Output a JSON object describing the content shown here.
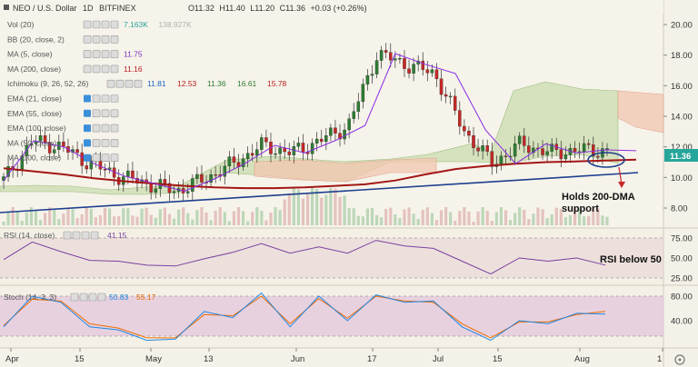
{
  "header": {
    "symbol": "NEO / U.S. Dollar",
    "interval": "1D",
    "exchange": "BITFINEX",
    "ohlc": {
      "o_label": "O",
      "o": "11.32",
      "h_label": "H",
      "h": "11.40",
      "l_label": "L",
      "l": "11.20",
      "c_label": "C",
      "c": "11.36"
    },
    "change": "+0.03 (+0.26%)"
  },
  "indicators": [
    {
      "label": "Vol (20)",
      "values": [
        "7.163K",
        "138.927K"
      ],
      "colors": [
        "#26a69a",
        "#b0b0b0"
      ]
    },
    {
      "label": "BB (20, close, 2)",
      "values": [],
      "colors": []
    },
    {
      "label": "MA (5, close)",
      "values": [
        "11.75"
      ],
      "colors": [
        "#7b2fbf"
      ]
    },
    {
      "label": "MA (200, close)",
      "values": [
        "11.16"
      ],
      "colors": [
        "#b71c1c"
      ]
    },
    {
      "label": "Ichimoku (9, 26, 52, 26)",
      "values": [
        "11.81",
        "12.53",
        "11.36",
        "16.61",
        "15.78"
      ],
      "colors": [
        "#1565c0",
        "#b71c1c",
        "#2e7d32",
        "#2e7d32",
        "#b71c1c"
      ]
    },
    {
      "label": "EMA (21, close)",
      "values": [],
      "colors": []
    },
    {
      "label": "EMA (55, close)",
      "values": [],
      "colors": []
    },
    {
      "label": "EMA (100, close)",
      "values": [],
      "colors": []
    },
    {
      "label": "MA (50, close)",
      "values": [],
      "colors": []
    },
    {
      "label": "MA (100, close)",
      "values": [],
      "colors": []
    }
  ],
  "price_axis": {
    "ticks": [
      "20.00",
      "18.00",
      "16.00",
      "14.00",
      "12.00",
      "10.00",
      "8.00"
    ],
    "current": "11.36",
    "current_color": "#26a69a"
  },
  "rsi_panel": {
    "label": "RSI (14, close)",
    "value": "41.15",
    "ticks": [
      "75.00",
      "50.00",
      "25.00"
    ]
  },
  "stoch_panel": {
    "label": "Stoch (14, 3, 3)",
    "values": [
      "50.83",
      "55.17"
    ],
    "colors": [
      "#1e88e5",
      "#ef6c00"
    ],
    "ticks": [
      "80.00",
      "40.00"
    ]
  },
  "time_axis": [
    "Apr",
    "15",
    "May",
    "13",
    "Jun",
    "17",
    "Jul",
    "15",
    "Aug",
    "1"
  ],
  "annotations": {
    "support_line1": "Holds 200-DMA",
    "support_line2": "support",
    "rsi_note": "RSI below 50"
  },
  "chart_data": {
    "type": "line",
    "title": "NEO / U.S. Dollar 1D BITFINEX",
    "ylim": [
      7.5,
      21
    ],
    "series": [
      {
        "name": "MA (200, close)",
        "values": [
          10.6,
          10.4,
          10.2,
          9.95,
          9.75,
          9.6,
          9.45,
          9.35,
          9.3,
          9.3,
          9.35,
          9.45,
          9.55,
          9.8,
          10.2,
          10.55,
          10.75,
          10.9,
          11.0,
          11.05,
          11.1,
          11.16
        ]
      },
      {
        "name": "MA (5, close)",
        "values": [
          9.8,
          12.4,
          12.0,
          10.9,
          10.1,
          9.6,
          9.1,
          9.9,
          10.9,
          12.1,
          11.6,
          12.4,
          13.4,
          18.1,
          17.4,
          16.8,
          13.1,
          10.9,
          12.2,
          11.6,
          11.8,
          11.75
        ]
      }
    ],
    "rsi": [
      48,
      70,
      58,
      47,
      46,
      41,
      40,
      49,
      57,
      68,
      56,
      64,
      56,
      72,
      65,
      62,
      46,
      30,
      50,
      46,
      50,
      41.15
    ],
    "stoch_k": [
      30,
      80,
      70,
      30,
      25,
      8,
      10,
      55,
      45,
      85,
      30,
      80,
      40,
      82,
      70,
      72,
      30,
      8,
      40,
      35,
      52,
      50.83
    ],
    "stoch_d": [
      32,
      75,
      72,
      35,
      28,
      12,
      12,
      50,
      48,
      80,
      35,
      76,
      44,
      80,
      72,
      70,
      35,
      12,
      38,
      38,
      50,
      55.17
    ]
  }
}
